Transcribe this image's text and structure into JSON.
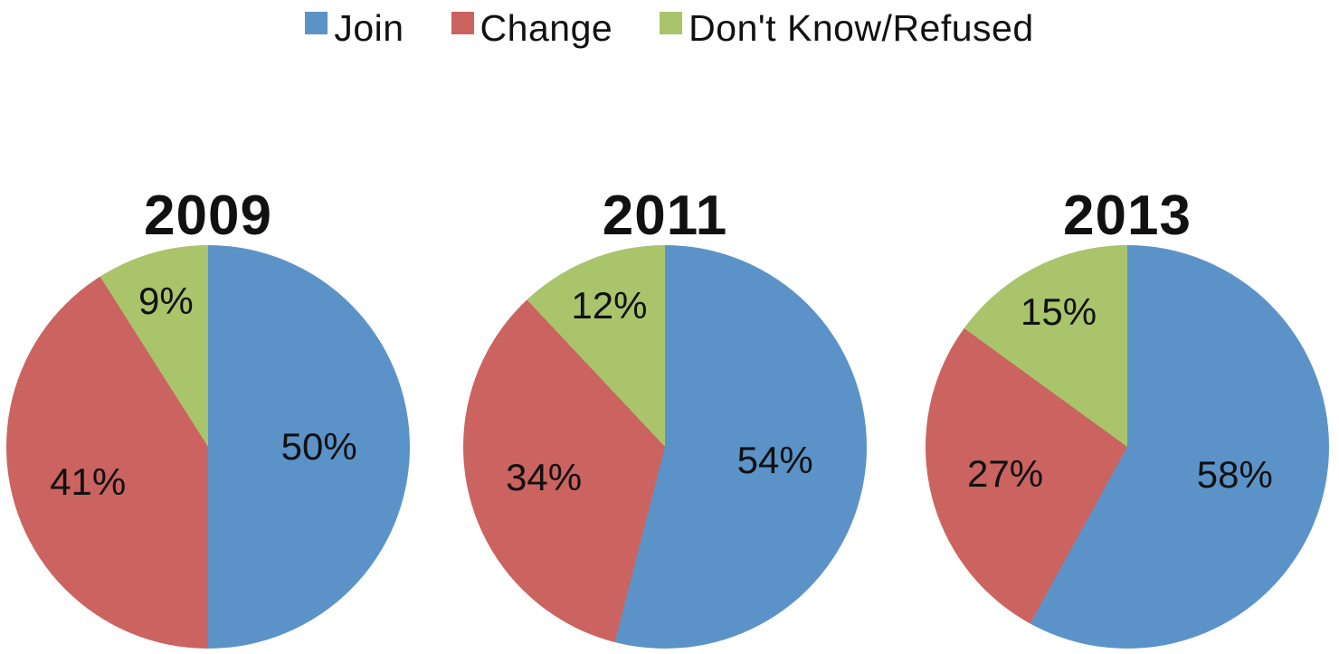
{
  "legend": {
    "position": "top",
    "items": [
      {
        "label": "Join",
        "color": "#5B93C8"
      },
      {
        "label": "Change",
        "color": "#CB6360"
      },
      {
        "label": "Don't Know/Refused",
        "color": "#A9C46B"
      }
    ]
  },
  "chart_data": [
    {
      "type": "pie",
      "title": "2009",
      "categories": [
        "Join",
        "Change",
        "Don't Know/Refused"
      ],
      "values": [
        50,
        41,
        9
      ],
      "labels": [
        "50%",
        "41%",
        "9%"
      ],
      "colors": [
        "#5B93C8",
        "#CB6360",
        "#A9C46B"
      ],
      "start_angle_deg": 0,
      "direction": "clockwise",
      "legend_position": "top"
    },
    {
      "type": "pie",
      "title": "2011",
      "categories": [
        "Join",
        "Change",
        "Don't Know/Refused"
      ],
      "values": [
        54,
        34,
        12
      ],
      "labels": [
        "54%",
        "34%",
        "12%"
      ],
      "colors": [
        "#5B93C8",
        "#CB6360",
        "#A9C46B"
      ],
      "start_angle_deg": 0,
      "direction": "clockwise",
      "legend_position": "top"
    },
    {
      "type": "pie",
      "title": "2013",
      "categories": [
        "Join",
        "Change",
        "Don't Know/Refused"
      ],
      "values": [
        58,
        27,
        15
      ],
      "labels": [
        "58%",
        "27%",
        "15%"
      ],
      "colors": [
        "#5B93C8",
        "#CB6360",
        "#A9C46B"
      ],
      "start_angle_deg": 0,
      "direction": "clockwise",
      "legend_position": "top"
    }
  ]
}
